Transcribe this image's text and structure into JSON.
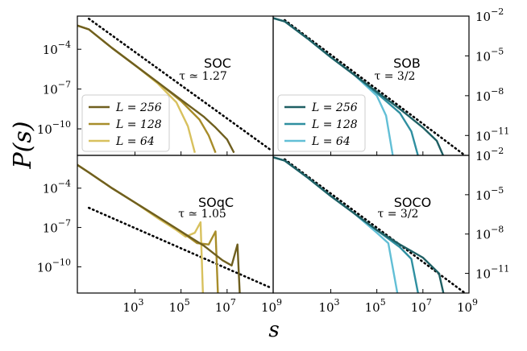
{
  "figure": {
    "ylabel": "P(s)",
    "xlabel": "s"
  },
  "x_ticks": [
    {
      "base": "10",
      "exp": "3",
      "value": 1000
    },
    {
      "base": "10",
      "exp": "5",
      "value": 100000
    },
    {
      "base": "10",
      "exp": "7",
      "value": 10000000
    },
    {
      "base": "10",
      "exp": "9",
      "value": 1000000000
    }
  ],
  "y_ticks": {
    "left": [
      {
        "base": "10",
        "exp": "−4",
        "value": -4
      },
      {
        "base": "10",
        "exp": "−7",
        "value": -7
      },
      {
        "base": "10",
        "exp": "−10",
        "value": -10
      }
    ],
    "right": [
      {
        "base": "10",
        "exp": "−2",
        "value": -2
      },
      {
        "base": "10",
        "exp": "−5",
        "value": -5
      },
      {
        "base": "10",
        "exp": "−8",
        "value": -8
      },
      {
        "base": "10",
        "exp": "−11",
        "value": -11
      }
    ]
  },
  "colors": {
    "gold_dark": "#6f5f1f",
    "gold_mid": "#a88d2a",
    "gold_light": "#d8c15e",
    "teal_dark": "#1f5f63",
    "teal_mid": "#2f8fa0",
    "teal_light": "#62bfd6"
  },
  "chart_data": [
    {
      "type": "line",
      "panel": "SOC",
      "title": "SOC",
      "annotation": {
        "text": "τ ≃ 1.27",
        "tau": 1.27
      },
      "x_scale": "log",
      "xlim_log10": [
        0.5,
        9
      ],
      "y_scale": "log",
      "ylim_log10": [
        -12,
        -1.5
      ],
      "legend": {
        "placement": "lower-left",
        "entries": [
          {
            "label": "L = 256",
            "L": 256,
            "color": "#6f5f1f"
          },
          {
            "label": "L = 128",
            "L": 128,
            "color": "#a88d2a"
          },
          {
            "label": "L = 64",
            "L": 64,
            "color": "#d8c15e"
          }
        ]
      },
      "reference_line": {
        "style": "dotted",
        "points_log10": [
          [
            1.0,
            -1.7
          ],
          [
            8.9,
            -11.6
          ]
        ]
      },
      "series": [
        {
          "name": "L = 256",
          "color": "#6f5f1f",
          "points_log10": [
            [
              0.3,
              -2.1
            ],
            [
              1.0,
              -2.5
            ],
            [
              2.0,
              -3.9
            ],
            [
              3.0,
              -5.2
            ],
            [
              4.0,
              -6.5
            ],
            [
              5.0,
              -7.8
            ],
            [
              6.0,
              -9.1
            ],
            [
              6.5,
              -9.9
            ],
            [
              7.0,
              -10.8
            ],
            [
              7.3,
              -11.8
            ]
          ]
        },
        {
          "name": "L = 128",
          "color": "#a88d2a",
          "points_log10": [
            [
              0.3,
              -2.1
            ],
            [
              1.0,
              -2.5
            ],
            [
              2.0,
              -3.9
            ],
            [
              3.0,
              -5.2
            ],
            [
              4.0,
              -6.5
            ],
            [
              5.0,
              -7.9
            ],
            [
              5.8,
              -9.3
            ],
            [
              6.2,
              -10.5
            ],
            [
              6.5,
              -11.8
            ]
          ]
        },
        {
          "name": "L = 64",
          "color": "#d8c15e",
          "points_log10": [
            [
              0.3,
              -2.1
            ],
            [
              1.0,
              -2.5
            ],
            [
              2.0,
              -3.9
            ],
            [
              3.0,
              -5.2
            ],
            [
              4.0,
              -6.6
            ],
            [
              4.8,
              -8.0
            ],
            [
              5.3,
              -9.8
            ],
            [
              5.6,
              -11.8
            ]
          ]
        }
      ]
    },
    {
      "type": "line",
      "panel": "SOB",
      "title": "SOB",
      "annotation": {
        "text": "τ = 3/2",
        "tau": 1.5
      },
      "x_scale": "log",
      "xlim_log10": [
        0.5,
        9
      ],
      "y_scale": "log",
      "ylim_log10": [
        -12.5,
        -2
      ],
      "legend": {
        "placement": "lower-left",
        "entries": [
          {
            "label": "L = 256",
            "L": 256,
            "color": "#1f5f63"
          },
          {
            "label": "L = 128",
            "L": 128,
            "color": "#2f8fa0"
          },
          {
            "label": "L = 64",
            "L": 64,
            "color": "#62bfd6"
          }
        ]
      },
      "reference_line": {
        "style": "dotted",
        "points_log10": [
          [
            1.0,
            -2.3
          ],
          [
            8.9,
            -12.6
          ]
        ]
      },
      "series": [
        {
          "name": "L = 256",
          "color": "#1f5f63",
          "points_log10": [
            [
              0.4,
              -2.1
            ],
            [
              1.0,
              -2.4
            ],
            [
              2.0,
              -3.7
            ],
            [
              3.0,
              -5.1
            ],
            [
              4.0,
              -6.4
            ],
            [
              5.0,
              -7.7
            ],
            [
              6.0,
              -9.0
            ],
            [
              7.0,
              -10.4
            ],
            [
              7.6,
              -11.4
            ],
            [
              7.9,
              -12.6
            ]
          ]
        },
        {
          "name": "L = 128",
          "color": "#2f8fa0",
          "points_log10": [
            [
              0.4,
              -2.1
            ],
            [
              1.0,
              -2.4
            ],
            [
              2.0,
              -3.7
            ],
            [
              3.0,
              -5.1
            ],
            [
              4.0,
              -6.4
            ],
            [
              5.0,
              -7.8
            ],
            [
              6.0,
              -9.3
            ],
            [
              6.5,
              -10.7
            ],
            [
              6.8,
              -12.6
            ]
          ]
        },
        {
          "name": "L = 64",
          "color": "#62bfd6",
          "points_log10": [
            [
              0.4,
              -2.1
            ],
            [
              1.0,
              -2.4
            ],
            [
              2.0,
              -3.7
            ],
            [
              3.0,
              -5.1
            ],
            [
              4.0,
              -6.4
            ],
            [
              5.0,
              -8.0
            ],
            [
              5.4,
              -9.5
            ],
            [
              5.7,
              -12.6
            ]
          ]
        }
      ]
    },
    {
      "type": "line",
      "panel": "SOqC",
      "title": "SOqC",
      "annotation": {
        "text": "τ ≃ 1.05",
        "tau": 1.05
      },
      "x_scale": "log",
      "xlim_log10": [
        0.5,
        9
      ],
      "y_scale": "log",
      "ylim_log10": [
        -12,
        -1.5
      ],
      "reference_line": {
        "style": "dotted",
        "points_log10": [
          [
            1.0,
            -5.5
          ],
          [
            8.9,
            -11.6
          ]
        ]
      },
      "series": [
        {
          "name": "L = 256",
          "color": "#6f5f1f",
          "points_log10": [
            [
              0.3,
              -2.0
            ],
            [
              1.0,
              -2.8
            ],
            [
              2.0,
              -4.0
            ],
            [
              3.0,
              -5.1
            ],
            [
              4.0,
              -6.2
            ],
            [
              5.0,
              -7.3
            ],
            [
              6.0,
              -8.4
            ],
            [
              6.8,
              -9.5
            ],
            [
              7.2,
              -9.9
            ],
            [
              7.45,
              -8.3
            ],
            [
              7.55,
              -12.0
            ]
          ]
        },
        {
          "name": "L = 128",
          "color": "#a88d2a",
          "points_log10": [
            [
              0.3,
              -2.0
            ],
            [
              1.0,
              -2.8
            ],
            [
              2.0,
              -4.0
            ],
            [
              3.0,
              -5.1
            ],
            [
              4.0,
              -6.2
            ],
            [
              5.0,
              -7.3
            ],
            [
              5.7,
              -8.2
            ],
            [
              6.2,
              -8.3
            ],
            [
              6.5,
              -7.3
            ],
            [
              6.6,
              -12.0
            ]
          ]
        },
        {
          "name": "L = 64",
          "color": "#d8c15e",
          "points_log10": [
            [
              0.3,
              -2.0
            ],
            [
              1.0,
              -2.8
            ],
            [
              2.0,
              -4.0
            ],
            [
              3.0,
              -5.1
            ],
            [
              4.0,
              -6.3
            ],
            [
              4.8,
              -7.2
            ],
            [
              5.2,
              -7.7
            ],
            [
              5.6,
              -7.4
            ],
            [
              5.85,
              -6.6
            ],
            [
              5.95,
              -12.0
            ]
          ]
        }
      ]
    },
    {
      "type": "line",
      "panel": "SOCO",
      "title": "SOCO",
      "annotation": {
        "text": "τ = 3/2",
        "tau": 1.5
      },
      "x_scale": "log",
      "xlim_log10": [
        0.5,
        9
      ],
      "y_scale": "log",
      "ylim_log10": [
        -12.5,
        -2
      ],
      "reference_line": {
        "style": "dotted",
        "points_log10": [
          [
            1.0,
            -2.3
          ],
          [
            8.9,
            -12.6
          ]
        ]
      },
      "series": [
        {
          "name": "L = 256",
          "color": "#1f5f63",
          "points_log10": [
            [
              0.4,
              -2.1
            ],
            [
              1.0,
              -2.4
            ],
            [
              2.0,
              -3.7
            ],
            [
              3.0,
              -5.1
            ],
            [
              4.0,
              -6.4
            ],
            [
              5.0,
              -7.7
            ],
            [
              6.0,
              -8.8
            ],
            [
              7.0,
              -9.8
            ],
            [
              7.7,
              -11.0
            ],
            [
              7.9,
              -12.6
            ]
          ]
        },
        {
          "name": "L = 128",
          "color": "#2f8fa0",
          "points_log10": [
            [
              0.4,
              -2.1
            ],
            [
              1.0,
              -2.4
            ],
            [
              2.0,
              -3.7
            ],
            [
              3.0,
              -5.1
            ],
            [
              4.0,
              -6.4
            ],
            [
              5.0,
              -7.7
            ],
            [
              6.0,
              -9.0
            ],
            [
              6.5,
              -9.9
            ],
            [
              6.8,
              -12.6
            ]
          ]
        },
        {
          "name": "L = 64",
          "color": "#62bfd6",
          "points_log10": [
            [
              0.4,
              -2.1
            ],
            [
              1.0,
              -2.4
            ],
            [
              2.0,
              -3.7
            ],
            [
              3.0,
              -5.1
            ],
            [
              4.0,
              -6.4
            ],
            [
              5.0,
              -7.9
            ],
            [
              5.5,
              -8.7
            ],
            [
              5.9,
              -12.6
            ]
          ]
        }
      ]
    }
  ]
}
